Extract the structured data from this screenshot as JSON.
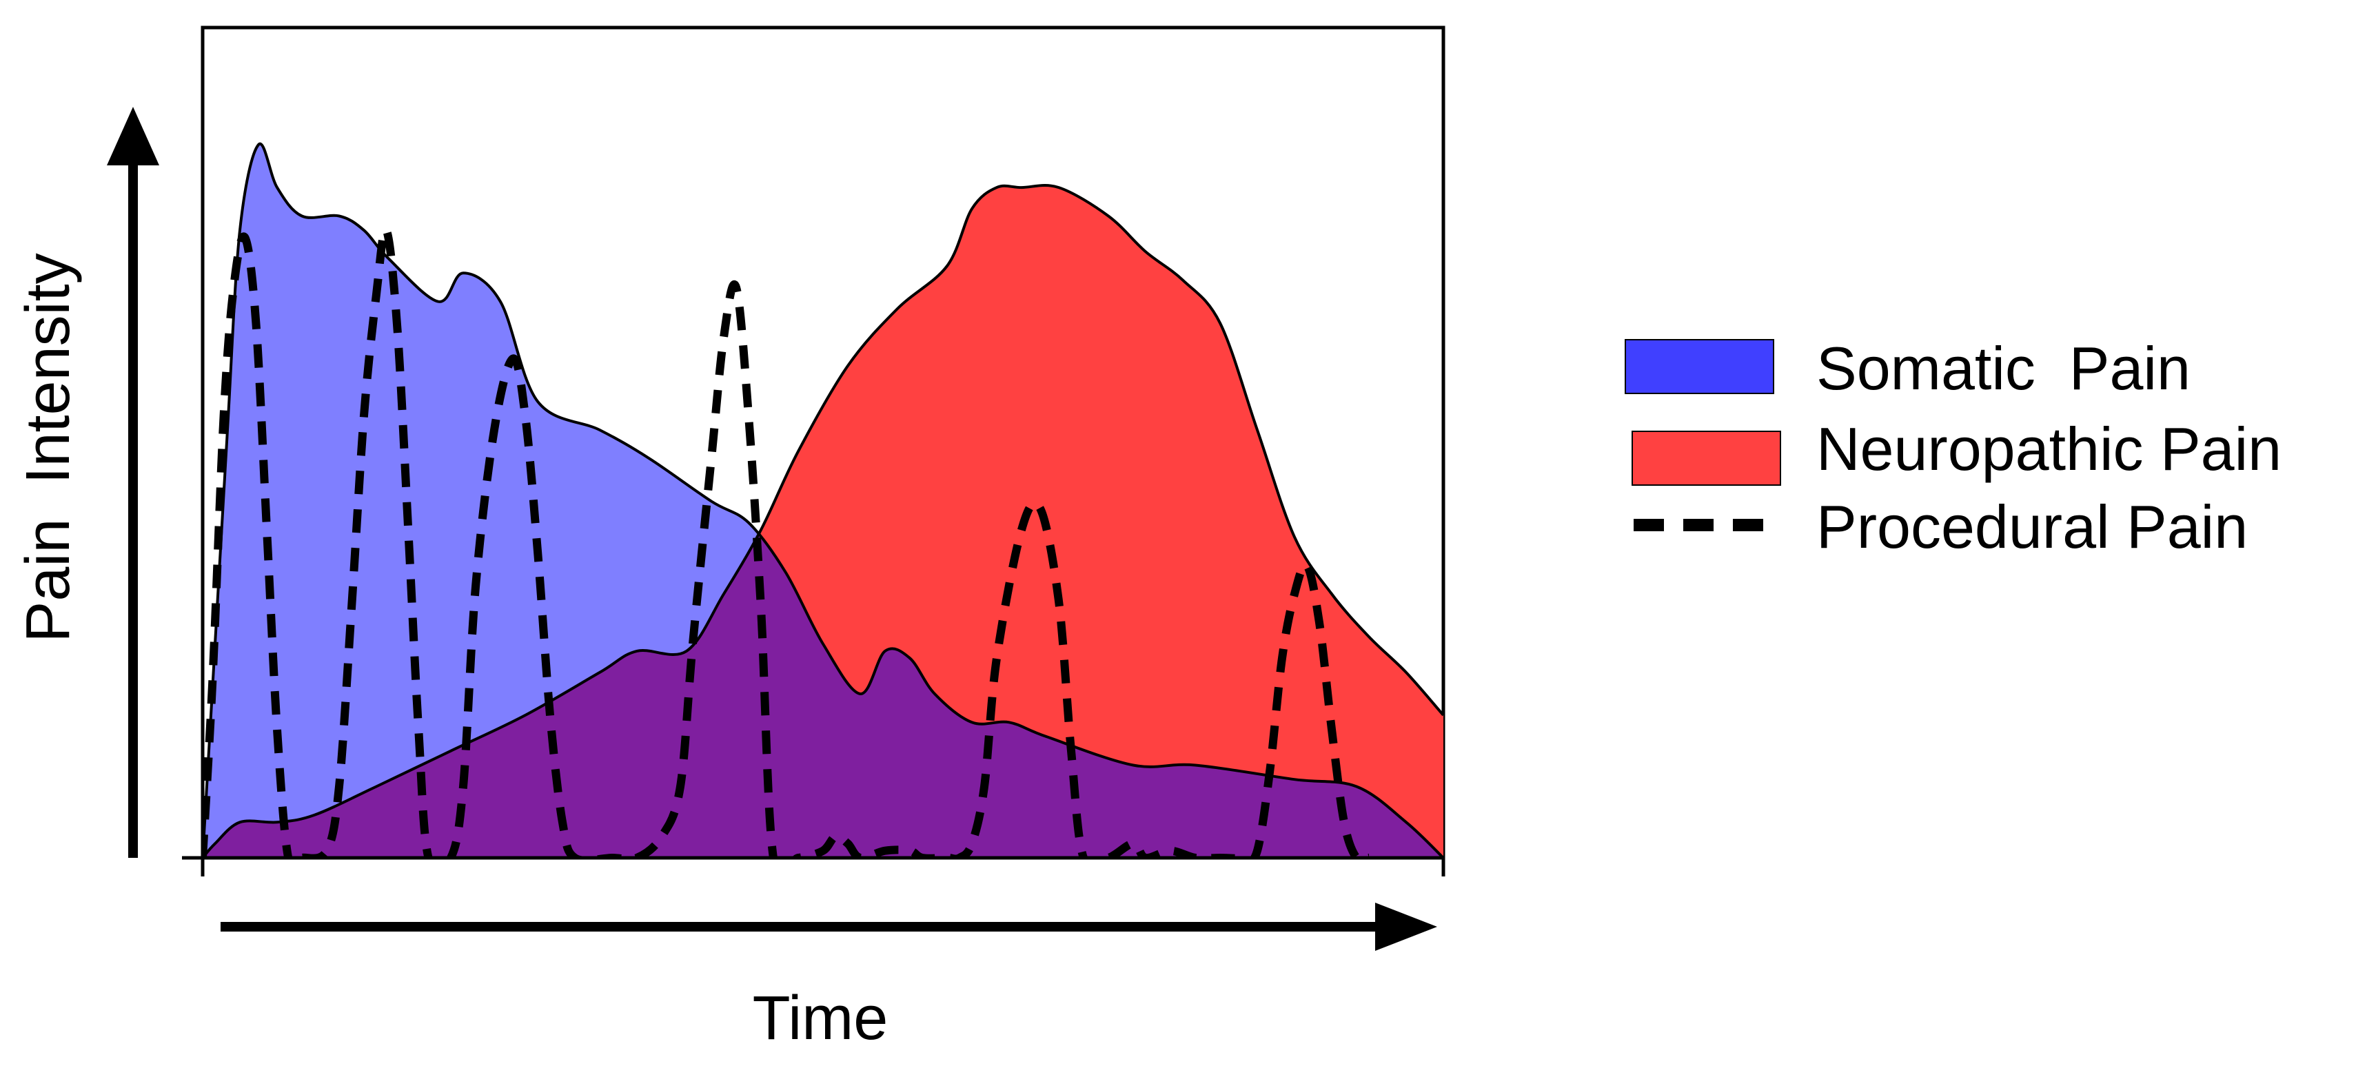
{
  "chart_data": {
    "type": "area",
    "title": "",
    "xlabel": "Time",
    "ylabel": "Pain  Intensity",
    "xlim": [
      0,
      100
    ],
    "ylim": [
      0,
      100
    ],
    "grid": false,
    "legend_position": "right",
    "colors": {
      "somatic_fill": "#7f7fff",
      "neuropathic_fill": "#ff4141",
      "overlap_fill": "#7f1f9f",
      "legend_somatic": "#4040ff",
      "legend_neuropathic": "#ff4141",
      "line": "#000000"
    },
    "series": [
      {
        "name": "Somatic  Pain",
        "style": "filled-area",
        "points": [
          [
            0,
            0
          ],
          [
            1,
            30
          ],
          [
            2,
            60
          ],
          [
            3,
            88
          ],
          [
            4.5,
            100
          ],
          [
            6,
            94
          ],
          [
            8,
            90
          ],
          [
            11,
            90
          ],
          [
            13,
            88
          ],
          [
            15,
            84
          ],
          [
            19,
            78
          ],
          [
            21,
            82
          ],
          [
            24,
            78
          ],
          [
            27,
            64
          ],
          [
            32,
            60
          ],
          [
            36,
            56
          ],
          [
            41,
            50
          ],
          [
            44,
            47
          ],
          [
            47,
            40
          ],
          [
            50,
            30
          ],
          [
            53,
            23
          ],
          [
            55,
            29
          ],
          [
            57,
            28
          ],
          [
            59,
            23
          ],
          [
            62,
            19
          ],
          [
            65,
            19
          ],
          [
            68,
            17
          ],
          [
            75,
            13
          ],
          [
            80,
            13
          ],
          [
            88,
            11
          ],
          [
            93,
            10
          ],
          [
            97,
            5
          ],
          [
            100,
            0
          ]
        ]
      },
      {
        "name": "Neuropathic Pain",
        "style": "filled-area",
        "points": [
          [
            0,
            0
          ],
          [
            1,
            2
          ],
          [
            3,
            5
          ],
          [
            6,
            5
          ],
          [
            9,
            6
          ],
          [
            14,
            10
          ],
          [
            20,
            15
          ],
          [
            26,
            20
          ],
          [
            32,
            26
          ],
          [
            35,
            29
          ],
          [
            39,
            29
          ],
          [
            42,
            37
          ],
          [
            45,
            46
          ],
          [
            48,
            57
          ],
          [
            52,
            69
          ],
          [
            56,
            77
          ],
          [
            60,
            83
          ],
          [
            62,
            91
          ],
          [
            64,
            94
          ],
          [
            66,
            94
          ],
          [
            69,
            94
          ],
          [
            73,
            90
          ],
          [
            76,
            85
          ],
          [
            79,
            81
          ],
          [
            82,
            75
          ],
          [
            85,
            60
          ],
          [
            88,
            45
          ],
          [
            91,
            37
          ],
          [
            94,
            31
          ],
          [
            97,
            26
          ],
          [
            100,
            20
          ]
        ]
      },
      {
        "name": "Procedural Pain",
        "style": "dashed-line",
        "points": [
          [
            0,
            0
          ],
          [
            0.8,
            25
          ],
          [
            1.7,
            62
          ],
          [
            2.5,
            80
          ],
          [
            3.4,
            87
          ],
          [
            4.3,
            75
          ],
          [
            5.2,
            45
          ],
          [
            6,
            18
          ],
          [
            6.9,
            0
          ],
          [
            8,
            0
          ],
          [
            10,
            1
          ],
          [
            11,
            10
          ],
          [
            12,
            35
          ],
          [
            13,
            62
          ],
          [
            14,
            79
          ],
          [
            14.8,
            88
          ],
          [
            15.7,
            74
          ],
          [
            16.6,
            45
          ],
          [
            17.4,
            18
          ],
          [
            18.2,
            0
          ],
          [
            20,
            0
          ],
          [
            21,
            10
          ],
          [
            22,
            38
          ],
          [
            23.5,
            60
          ],
          [
            25,
            70
          ],
          [
            26,
            62
          ],
          [
            27,
            43
          ],
          [
            28,
            20
          ],
          [
            29,
            5
          ],
          [
            30,
            0
          ],
          [
            33,
            0
          ],
          [
            35,
            0
          ],
          [
            37,
            3
          ],
          [
            38.5,
            10
          ],
          [
            39.5,
            30
          ],
          [
            41,
            56
          ],
          [
            42,
            73
          ],
          [
            43,
            80
          ],
          [
            44,
            62
          ],
          [
            45,
            35
          ],
          [
            46,
            0
          ],
          [
            48,
            0
          ],
          [
            50,
            1
          ],
          [
            51,
            3
          ],
          [
            52,
            2
          ],
          [
            53,
            0
          ],
          [
            55,
            1
          ],
          [
            57,
            1
          ],
          [
            58,
            0
          ],
          [
            60,
            0
          ],
          [
            61,
            0
          ],
          [
            62,
            2
          ],
          [
            63,
            10
          ],
          [
            64,
            28
          ],
          [
            66,
            46
          ],
          [
            67.5,
            49
          ],
          [
            69,
            36
          ],
          [
            70,
            15
          ],
          [
            71,
            0
          ],
          [
            73,
            0
          ],
          [
            75,
            2
          ],
          [
            76,
            0
          ],
          [
            78,
            1
          ],
          [
            80,
            0
          ],
          [
            82,
            0
          ],
          [
            84,
            0
          ],
          [
            85,
            1
          ],
          [
            86,
            12
          ],
          [
            87,
            28
          ],
          [
            88,
            37
          ],
          [
            89,
            41
          ],
          [
            90,
            33
          ],
          [
            91,
            18
          ],
          [
            92,
            5
          ],
          [
            93,
            0
          ],
          [
            94,
            0
          ]
        ]
      }
    ],
    "legend": [
      {
        "label": "Somatic  Pain",
        "key": "somatic"
      },
      {
        "label": "Neuropathic Pain",
        "key": "neuropathic"
      },
      {
        "label": "Procedural Pain",
        "key": "procedural"
      }
    ]
  }
}
